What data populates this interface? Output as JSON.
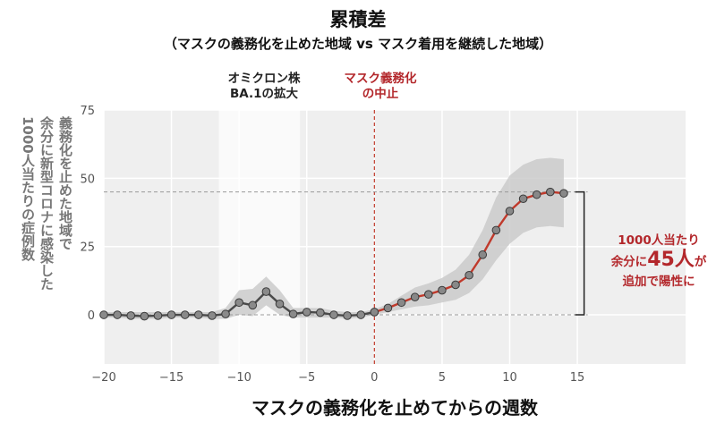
{
  "header": {
    "title": "累積差",
    "subtitle": "（マスクの義務化を止めた地域 vs マスク着用を継続した地域）"
  },
  "chart_data": {
    "type": "line",
    "title": "累積差",
    "subtitle": "（マスクの義務化を止めた地域 vs マスク着用を継続した地域）",
    "xlabel": "マスクの義務化を止めてからの週数",
    "ylabel_lines": [
      "義務化を止めた地域で",
      "余分に新型コロナに感染した",
      "1000人当たりの症例数"
    ],
    "xlim": [
      -20,
      23
    ],
    "ylim": [
      -18,
      75
    ],
    "x_ticks": [
      -20,
      -15,
      -10,
      -5,
      0,
      5,
      10,
      15
    ],
    "x_tick_labels": [
      "−20",
      "−15",
      "−10",
      "−5",
      "0",
      "5",
      "10",
      "15"
    ],
    "y_ticks": [
      0,
      25,
      50,
      75
    ],
    "y_tick_labels": [
      "0",
      "25",
      "50",
      "75"
    ],
    "grid": true,
    "shaded_x_ranges": [
      [
        -20,
        -11.5
      ],
      [
        -5.5,
        23
      ]
    ],
    "reference_lines": [
      {
        "axis": "x",
        "value": 0,
        "style": "dashed",
        "color": "#c0392b"
      },
      {
        "axis": "y",
        "value": 45,
        "style": "dashed",
        "color": "#999999"
      },
      {
        "axis": "y",
        "value": 0,
        "style": "dashed",
        "color": "#999999"
      }
    ],
    "series": [
      {
        "color": "#4a4a4a",
        "x": [
          -20,
          -19,
          -18,
          -17,
          -16,
          -15,
          -14,
          -13,
          -12,
          -11,
          -10,
          -9,
          -8,
          -7,
          -6,
          -5,
          -4,
          -3,
          -2,
          -1,
          0
        ],
        "y": [
          0,
          0,
          -0.3,
          -0.5,
          -0.3,
          0,
          0,
          0,
          -0.3,
          0.3,
          4.5,
          3.5,
          8.5,
          4,
          0.3,
          1,
          0.8,
          0,
          -0.3,
          0,
          1
        ],
        "ci_low": [
          -1,
          -1,
          -1.5,
          -1.5,
          -1.5,
          -1,
          -1,
          -1,
          -1.5,
          -1.5,
          0,
          -0.5,
          3.5,
          0,
          -1,
          -1,
          -1,
          -1,
          -1.5,
          -1,
          0
        ],
        "ci_high": [
          1,
          1,
          1,
          1,
          1,
          1,
          1,
          1,
          1,
          2.5,
          9,
          9.5,
          14,
          9,
          2.5,
          2.5,
          2.5,
          1.5,
          1,
          1,
          2
        ]
      },
      {
        "color": "#c0392b",
        "marker_color": "#888888",
        "x": [
          0,
          1,
          2,
          3,
          4,
          5,
          6,
          7,
          8,
          9,
          10,
          11,
          12,
          13,
          14
        ],
        "y": [
          1,
          2.5,
          4.5,
          6.5,
          7.5,
          9,
          11,
          14.5,
          22,
          31,
          38,
          42.5,
          44,
          45,
          44.5
        ],
        "ci_low": [
          0,
          1,
          2,
          3,
          3.5,
          4.5,
          5.5,
          8,
          13,
          20,
          26,
          30,
          32,
          32.5,
          32
        ],
        "ci_high": [
          2,
          4,
          7,
          10,
          11.5,
          13.5,
          16.5,
          22,
          31,
          43,
          51,
          55,
          57,
          57.5,
          57
        ]
      }
    ],
    "annotations": [
      {
        "lines": [
          "オミクロン株",
          "BA.1の拡大"
        ],
        "x": -9,
        "color": "#222222"
      },
      {
        "lines": [
          "マスク義務化",
          "の中止"
        ],
        "x": 0,
        "color": "#b3272b"
      }
    ],
    "callout": {
      "bracket": {
        "x": 15.5,
        "y_from": 0,
        "y_to": 45
      },
      "lines": [
        "1000人当たり",
        "余分に",
        "45人",
        "が",
        "追加で陽性に"
      ],
      "color": "#b3272b"
    }
  }
}
